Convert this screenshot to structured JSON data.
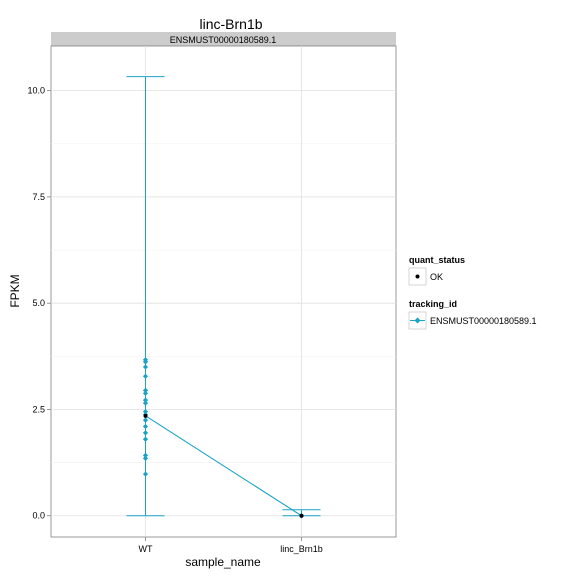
{
  "chart_data": {
    "type": "line",
    "title": "linc-Brn1b",
    "facet_label": "ENSMUST00000180589.1",
    "xlabel": "sample_name",
    "ylabel": "FPKM",
    "categories": [
      "WT",
      "linc_Brn1b"
    ],
    "ylim": [
      -0.5,
      11.05
    ],
    "yticks": [
      0.0,
      2.5,
      5.0,
      7.5,
      10.0
    ],
    "ytick_labels": [
      "0.0",
      "2.5",
      "5.0",
      "7.5",
      "10.0"
    ],
    "grid": true,
    "series": [
      {
        "name": "ENSMUST00000180589.1",
        "color": "#1ba3c6",
        "values": [
          2.35,
          0.0
        ],
        "error_low": [
          0.0,
          0.0
        ],
        "error_high": [
          10.33,
          0.14
        ],
        "replicates": [
          [
            0.98,
            1.35,
            1.42,
            1.8,
            1.95,
            2.1,
            2.25,
            2.38,
            2.45,
            2.65,
            2.72,
            2.88,
            2.95,
            3.28,
            3.5,
            3.62,
            3.67
          ],
          [
            0.0,
            0.0
          ]
        ]
      }
    ],
    "legend": {
      "placement": "right",
      "quant_status": {
        "title": "quant_status",
        "entries": [
          "OK"
        ]
      },
      "tracking_id": {
        "title": "tracking_id",
        "entries": [
          "ENSMUST00000180589.1"
        ]
      }
    },
    "colors": {
      "series": "#1ba3c6",
      "point": "#000000",
      "strip": "#cccccc",
      "grid": "#e6e6e6"
    }
  }
}
